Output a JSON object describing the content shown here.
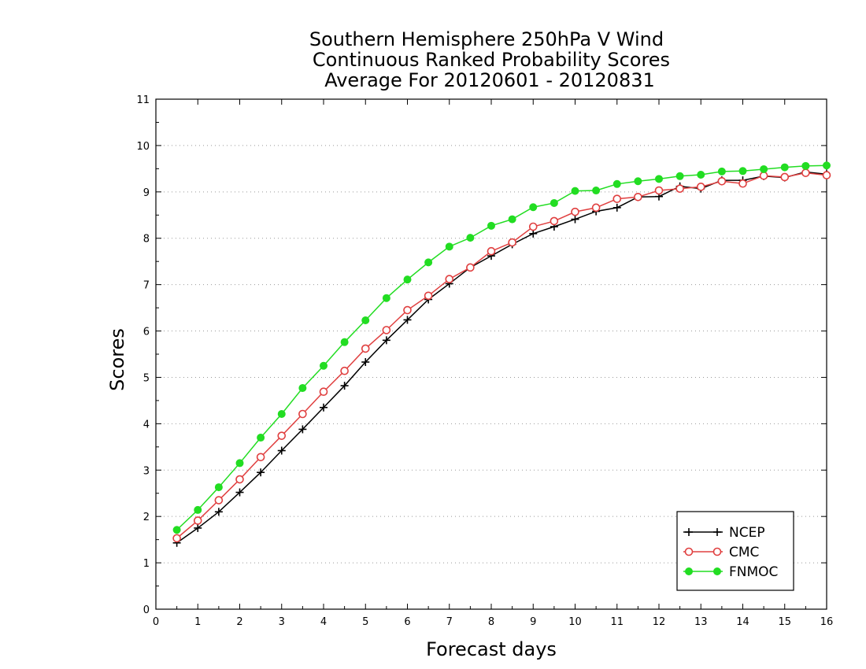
{
  "chart_data": {
    "type": "line",
    "title_lines": [
      "Southern Hemisphere 250hPa V Wind",
      "Continuous Ranked Probability Scores",
      "Average For 20120601 - 20120831"
    ],
    "xlabel": "Forecast days",
    "ylabel": "Scores",
    "xlim": [
      0,
      16
    ],
    "ylim": [
      0,
      11
    ],
    "xticks": [
      "0",
      "1",
      "2",
      "3",
      "4",
      "5",
      "6",
      "7",
      "8",
      "9",
      "10",
      "11",
      "12",
      "13",
      "14",
      "15",
      "16"
    ],
    "yticks": [
      "0",
      "1",
      "2",
      "3",
      "4",
      "5",
      "6",
      "7",
      "8",
      "9",
      "10",
      "11"
    ],
    "grid": "horizontal dotted",
    "legend_position": "bottom-right",
    "x": [
      0.5,
      1,
      1.5,
      2,
      2.5,
      3,
      3.5,
      4,
      4.5,
      5,
      5.5,
      6,
      6.5,
      7,
      7.5,
      8,
      8.5,
      9,
      9.5,
      10,
      10.5,
      11,
      11.5,
      12,
      12.5,
      13,
      13.5,
      14,
      14.5,
      15,
      15.5,
      16
    ],
    "series": [
      {
        "name": "NCEP",
        "color": "#000000",
        "marker": "plus",
        "values": [
          1.43,
          1.75,
          2.1,
          2.52,
          2.95,
          3.42,
          3.88,
          4.35,
          4.82,
          5.33,
          5.8,
          6.24,
          6.68,
          7.02,
          7.37,
          7.62,
          7.87,
          8.1,
          8.25,
          8.41,
          8.58,
          8.66,
          8.89,
          8.9,
          9.12,
          9.07,
          9.25,
          9.25,
          9.34,
          9.31,
          9.43,
          9.38
        ]
      },
      {
        "name": "CMC",
        "color": "#e04040",
        "marker": "open-circle",
        "values": [
          1.53,
          1.91,
          2.35,
          2.8,
          3.28,
          3.74,
          4.21,
          4.69,
          5.14,
          5.62,
          6.02,
          6.45,
          6.76,
          7.12,
          7.37,
          7.72,
          7.91,
          8.25,
          8.37,
          8.57,
          8.66,
          8.85,
          8.89,
          9.03,
          9.07,
          9.11,
          9.23,
          9.18,
          9.35,
          9.32,
          9.41,
          9.36
        ]
      },
      {
        "name": "FNMOC",
        "color": "#22dd22",
        "marker": "filled-circle",
        "values": [
          1.71,
          2.14,
          2.63,
          3.15,
          3.7,
          4.21,
          4.77,
          5.25,
          5.76,
          6.23,
          6.71,
          7.11,
          7.48,
          7.82,
          8.01,
          8.27,
          8.41,
          8.67,
          8.76,
          9.02,
          9.03,
          9.17,
          9.23,
          9.28,
          9.34,
          9.37,
          9.44,
          9.45,
          9.49,
          9.53,
          9.56,
          9.57
        ]
      }
    ]
  }
}
